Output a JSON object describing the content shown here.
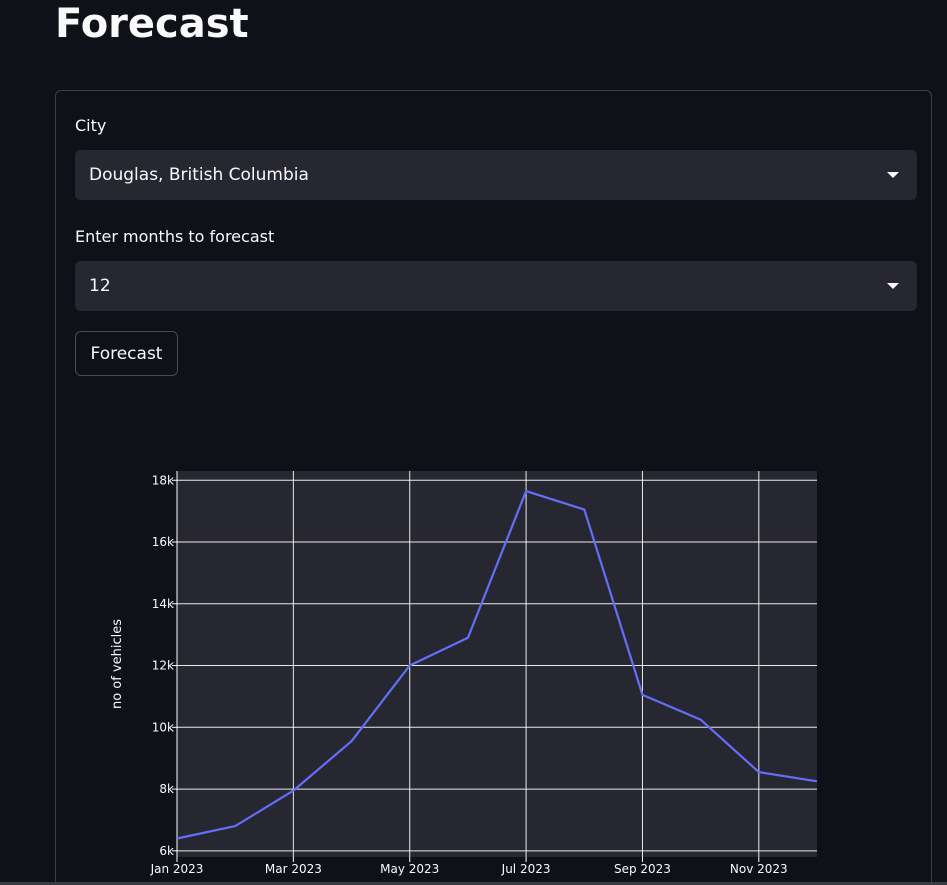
{
  "page": {
    "title": "Forecast"
  },
  "form": {
    "city_label": "City",
    "city_value": "Douglas, British Columbia",
    "months_label": "Enter months to forecast",
    "months_value": "12",
    "forecast_button": "Forecast"
  },
  "chart_data": {
    "type": "line",
    "ylabel": "no of vehicles",
    "x": [
      "2023-01",
      "2023-02",
      "2023-03",
      "2023-04",
      "2023-05",
      "2023-06",
      "2023-07",
      "2023-08",
      "2023-09",
      "2023-10",
      "2023-11",
      "2023-12"
    ],
    "series": [
      {
        "values": [
          6400,
          6800,
          7950,
          9550,
          12000,
          12900,
          17650,
          17050,
          11050,
          10250,
          8550,
          8250
        ]
      }
    ],
    "x_ticks": [
      "Jan 2023",
      "Mar 2023",
      "May 2023",
      "Jul 2023",
      "Sep 2023",
      "Nov 2023"
    ],
    "y_ticks": [
      "6k",
      "8k",
      "10k",
      "12k",
      "14k",
      "16k",
      "18k"
    ],
    "y_tick_values": [
      6000,
      8000,
      10000,
      12000,
      14000,
      16000,
      18000
    ],
    "ylim": [
      5800,
      18300
    ],
    "grid": true,
    "line_color": "#636efa",
    "plot_bg": "#262730",
    "grid_color": "#ffffff"
  }
}
